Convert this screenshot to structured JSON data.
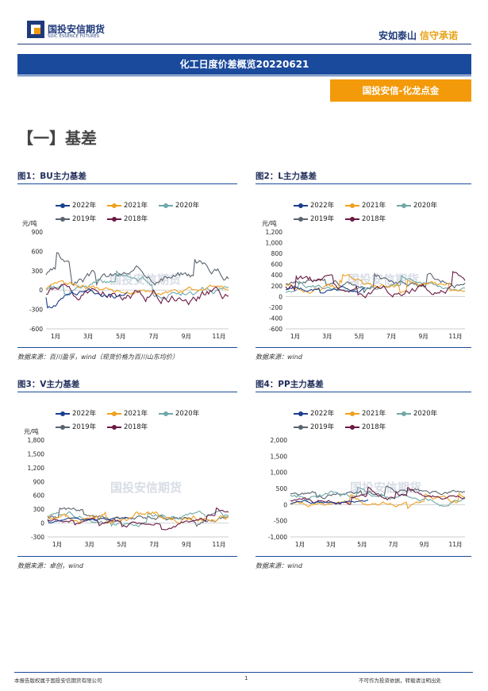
{
  "header": {
    "logo_cn": "国投安信期货",
    "logo_en": "SDIC ESSENCE FUTURES",
    "slogan_a": "安如泰山",
    "slogan_b": "信守承诺"
  },
  "report": {
    "title": "化工日度价差概览20220621",
    "badge": "国投安信-化龙点金"
  },
  "section": {
    "title": "【一】基差"
  },
  "colors": {
    "2022年": "#1a3f8f",
    "2021年": "#f0a020",
    "2020年": "#6fa8a8",
    "2019年": "#5a6470",
    "2018年": "#6b1a45"
  },
  "figures": [
    {
      "title": "图1：BU主力基差",
      "source": "数据来源：百川盈孚，wind（现货价格为百川山东均价）",
      "unit": "元/吨",
      "legend": [
        "2022年",
        "2021年",
        "2020年",
        "2019年",
        "2018年"
      ],
      "watermark": "国投安信期货",
      "chart_data": {
        "type": "line",
        "ylabel": "元/吨",
        "ylim": [
          -600,
          900
        ],
        "yticks": [
          "900",
          "600",
          "300",
          "0",
          "-300",
          "-600"
        ],
        "xticks": [
          "1月",
          "3月",
          "5月",
          "7月",
          "9月",
          "11月"
        ],
        "series_names": [
          "2022年",
          "2021年",
          "2020年",
          "2019年",
          "2018年"
        ]
      }
    },
    {
      "title": "图2：L主力基差",
      "source": "数据来源：wind",
      "unit": "元/吨",
      "legend": [
        "2022年",
        "2021年",
        "2020年",
        "2019年",
        "2018年"
      ],
      "watermark": "国投安信期货",
      "chart_data": {
        "type": "line",
        "ylabel": "元/吨",
        "ylim": [
          -600,
          1200
        ],
        "yticks": [
          "1,200",
          "1,000",
          "800",
          "600",
          "400",
          "200",
          "0",
          "-200",
          "-400",
          "-600"
        ],
        "xticks": [
          "1月",
          "3月",
          "5月",
          "7月",
          "9月",
          "11月"
        ],
        "series_names": [
          "2022年",
          "2021年",
          "2020年",
          "2019年",
          "2018年"
        ]
      }
    },
    {
      "title": "图3：V主力基差",
      "source": "数据来源：卓创，wind",
      "unit": "元/吨",
      "legend": [
        "2022年",
        "2021年",
        "2020年",
        "2019年",
        "2018年"
      ],
      "watermark": "国投安信期货",
      "chart_data": {
        "type": "line",
        "ylabel": "元/吨",
        "ylim": [
          -300,
          1800
        ],
        "yticks": [
          "1,800",
          "1,500",
          "1,200",
          "900",
          "600",
          "300",
          "0",
          "-300"
        ],
        "xticks": [
          "1月",
          "3月",
          "5月",
          "7月",
          "9月",
          "11月"
        ],
        "series_names": [
          "2022年",
          "2021年",
          "2020年",
          "2019年",
          "2018年"
        ]
      }
    },
    {
      "title": "图4：PP主力基差",
      "source": "数据来源：wind",
      "unit": "",
      "legend": [
        "2022年",
        "2021年",
        "2020年",
        "2019年",
        "2018年"
      ],
      "watermark": "国投安信期货",
      "chart_data": {
        "type": "line",
        "ylabel": "",
        "ylim": [
          -1000,
          2000
        ],
        "yticks": [
          "2,000",
          "1,500",
          "1,000",
          "500",
          "0",
          "-500",
          "-1,000"
        ],
        "xticks": [
          "1月",
          "3月",
          "5月",
          "7月",
          "9月",
          "11月"
        ],
        "series_names": [
          "2022年",
          "2021年",
          "2020年",
          "2019年",
          "2018年"
        ]
      }
    }
  ],
  "footer": {
    "left": "本报告版权属于国投安信期货有限公司",
    "page": "1",
    "right": "不可作为投资依据，转载请注明出处"
  }
}
